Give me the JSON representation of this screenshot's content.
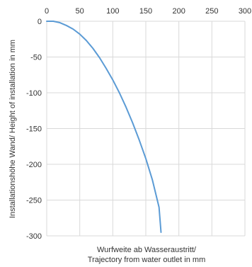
{
  "chart_data": {
    "type": "line",
    "title": "",
    "xlabel_lines": [
      "Wurfweite  ab Wasseraustritt/",
      "Trajectory from water outlet in mm"
    ],
    "ylabel": "Installationshöhe Wand/ Height of installation in mm",
    "x_ticks": [
      0,
      50,
      100,
      150,
      200,
      250,
      300
    ],
    "y_ticks": [
      0,
      -50,
      -100,
      -150,
      -200,
      -250,
      -300
    ],
    "xlim": [
      0,
      300
    ],
    "ylim": [
      -300,
      0
    ],
    "x_axis_position": "top",
    "grid": true,
    "legend": "none",
    "colors": {
      "series": "#5b9bd5",
      "grid": "#d9d9d9",
      "text": "#333333"
    },
    "series": [
      {
        "x": [
          0,
          5,
          10,
          15,
          20,
          30,
          40,
          50,
          60,
          70,
          80,
          90,
          100,
          110,
          120,
          130,
          140,
          150,
          160,
          170,
          173
        ],
        "y": [
          0,
          0,
          0,
          -1,
          -2,
          -6,
          -11,
          -18,
          -27,
          -38,
          -51,
          -66,
          -82,
          -100,
          -120,
          -142,
          -166,
          -192,
          -222,
          -260,
          -295
        ]
      }
    ]
  }
}
